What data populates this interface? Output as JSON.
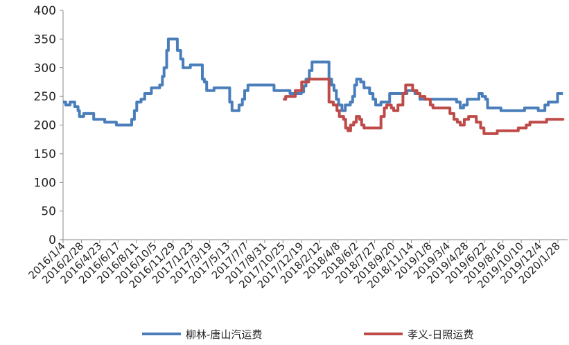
{
  "chart_data": {
    "type": "line",
    "title": "",
    "xlabel": "",
    "ylabel": "",
    "ylim": [
      0,
      400
    ],
    "yticks": [
      0,
      50,
      100,
      150,
      200,
      250,
      300,
      350,
      400
    ],
    "x_tick_labels": [
      "2016/1/4",
      "2016/2/28",
      "2016/4/23",
      "2016/6/17",
      "2016/8/11",
      "2016/10/5",
      "2016/11/29",
      "2017/1/23",
      "2017/3/19",
      "2017/5/13",
      "2017/7/7",
      "2017/8/31",
      "2017/10/25",
      "2017/12/19",
      "2018/2/12",
      "2018/4/8",
      "2018/6/2",
      "2018/7/27",
      "2018/9/20",
      "2018/11/14",
      "2019/1/8",
      "2019/3/4",
      "2019/4/28",
      "2019/6/22",
      "2019/8/16",
      "2019/10/10",
      "2019/12/4",
      "2020/1/28"
    ],
    "grid": false,
    "legend_position": "bottom",
    "series": [
      {
        "name": "柳林-唐山汽运费",
        "color": "#4a7ebb",
        "points": [
          [
            "2016-01-04",
            240
          ],
          [
            "2016-01-12",
            235
          ],
          [
            "2016-01-25",
            240
          ],
          [
            "2016-02-08",
            232
          ],
          [
            "2016-02-18",
            225
          ],
          [
            "2016-02-22",
            215
          ],
          [
            "2016-03-06",
            220
          ],
          [
            "2016-04-05",
            210
          ],
          [
            "2016-05-08",
            205
          ],
          [
            "2016-06-12",
            200
          ],
          [
            "2016-07-20",
            200
          ],
          [
            "2016-07-28",
            210
          ],
          [
            "2016-08-05",
            225
          ],
          [
            "2016-08-12",
            240
          ],
          [
            "2016-08-25",
            245
          ],
          [
            "2016-09-05",
            255
          ],
          [
            "2016-09-25",
            265
          ],
          [
            "2016-10-20",
            270
          ],
          [
            "2016-10-28",
            285
          ],
          [
            "2016-11-02",
            300
          ],
          [
            "2016-11-10",
            330
          ],
          [
            "2016-11-15",
            350
          ],
          [
            "2016-12-05",
            350
          ],
          [
            "2016-12-12",
            330
          ],
          [
            "2016-12-22",
            315
          ],
          [
            "2016-12-29",
            300
          ],
          [
            "2017-01-20",
            305
          ],
          [
            "2017-02-15",
            305
          ],
          [
            "2017-02-25",
            280
          ],
          [
            "2017-03-03",
            275
          ],
          [
            "2017-03-10",
            260
          ],
          [
            "2017-04-01",
            265
          ],
          [
            "2017-05-01",
            265
          ],
          [
            "2017-05-18",
            240
          ],
          [
            "2017-05-25",
            225
          ],
          [
            "2017-06-08",
            225
          ],
          [
            "2017-06-15",
            235
          ],
          [
            "2017-06-25",
            245
          ],
          [
            "2017-07-02",
            260
          ],
          [
            "2017-07-12",
            270
          ],
          [
            "2017-09-20",
            270
          ],
          [
            "2017-09-28",
            260
          ],
          [
            "2017-10-25",
            260
          ],
          [
            "2017-11-08",
            260
          ],
          [
            "2017-11-15",
            255
          ],
          [
            "2017-12-19",
            258
          ],
          [
            "2017-12-26",
            268
          ],
          [
            "2018-01-02",
            280
          ],
          [
            "2018-01-12",
            295
          ],
          [
            "2018-01-20",
            310
          ],
          [
            "2018-03-05",
            310
          ],
          [
            "2018-03-12",
            280
          ],
          [
            "2018-03-20",
            270
          ],
          [
            "2018-03-27",
            260
          ],
          [
            "2018-04-03",
            245
          ],
          [
            "2018-04-10",
            235
          ],
          [
            "2018-04-20",
            225
          ],
          [
            "2018-04-30",
            235
          ],
          [
            "2018-05-15",
            240
          ],
          [
            "2018-05-22",
            250
          ],
          [
            "2018-05-28",
            270
          ],
          [
            "2018-06-03",
            280
          ],
          [
            "2018-06-15",
            275
          ],
          [
            "2018-06-25",
            265
          ],
          [
            "2018-07-12",
            255
          ],
          [
            "2018-07-22",
            245
          ],
          [
            "2018-07-30",
            235
          ],
          [
            "2018-08-15",
            240
          ],
          [
            "2018-09-10",
            255
          ],
          [
            "2018-10-20",
            255
          ],
          [
            "2018-11-01",
            260
          ],
          [
            "2018-11-25",
            255
          ],
          [
            "2018-12-10",
            245
          ],
          [
            "2019-03-20",
            245
          ],
          [
            "2019-03-30",
            240
          ],
          [
            "2019-04-10",
            230
          ],
          [
            "2019-04-20",
            235
          ],
          [
            "2019-05-01",
            245
          ],
          [
            "2019-05-30",
            245
          ],
          [
            "2019-06-05",
            255
          ],
          [
            "2019-06-15",
            250
          ],
          [
            "2019-06-25",
            245
          ],
          [
            "2019-07-01",
            230
          ],
          [
            "2019-08-01",
            230
          ],
          [
            "2019-08-10",
            225
          ],
          [
            "2019-10-10",
            225
          ],
          [
            "2019-10-20",
            230
          ],
          [
            "2019-11-20",
            230
          ],
          [
            "2019-11-30",
            225
          ],
          [
            "2019-12-20",
            235
          ],
          [
            "2019-12-30",
            240
          ],
          [
            "2020-01-20",
            240
          ],
          [
            "2020-01-27",
            255
          ],
          [
            "2020-02-12",
            255
          ]
        ]
      },
      {
        "name": "孝义-日照运费",
        "color": "#be4b48",
        "points": [
          [
            "2017-10-25",
            245
          ],
          [
            "2017-11-02",
            250
          ],
          [
            "2017-11-20",
            250
          ],
          [
            "2017-12-01",
            260
          ],
          [
            "2017-12-20",
            275
          ],
          [
            "2018-01-10",
            280
          ],
          [
            "2018-03-08",
            280
          ],
          [
            "2018-03-12",
            240
          ],
          [
            "2018-03-25",
            235
          ],
          [
            "2018-04-05",
            225
          ],
          [
            "2018-04-12",
            215
          ],
          [
            "2018-04-25",
            210
          ],
          [
            "2018-05-01",
            195
          ],
          [
            "2018-05-08",
            190
          ],
          [
            "2018-05-16",
            200
          ],
          [
            "2018-05-25",
            205
          ],
          [
            "2018-06-02",
            215
          ],
          [
            "2018-06-12",
            210
          ],
          [
            "2018-06-18",
            200
          ],
          [
            "2018-06-25",
            195
          ],
          [
            "2018-08-10",
            195
          ],
          [
            "2018-08-15",
            215
          ],
          [
            "2018-08-25",
            230
          ],
          [
            "2018-09-01",
            235
          ],
          [
            "2018-09-15",
            230
          ],
          [
            "2018-09-22",
            225
          ],
          [
            "2018-10-05",
            235
          ],
          [
            "2018-10-20",
            255
          ],
          [
            "2018-10-28",
            270
          ],
          [
            "2018-11-10",
            270
          ],
          [
            "2018-11-18",
            260
          ],
          [
            "2018-12-01",
            255
          ],
          [
            "2018-12-10",
            250
          ],
          [
            "2018-12-25",
            245
          ],
          [
            "2019-01-10",
            235
          ],
          [
            "2019-01-18",
            230
          ],
          [
            "2019-03-01",
            230
          ],
          [
            "2019-03-10",
            220
          ],
          [
            "2019-03-22",
            210
          ],
          [
            "2019-04-01",
            205
          ],
          [
            "2019-04-10",
            200
          ],
          [
            "2019-04-22",
            210
          ],
          [
            "2019-05-05",
            215
          ],
          [
            "2019-05-18",
            215
          ],
          [
            "2019-05-28",
            205
          ],
          [
            "2019-06-10",
            195
          ],
          [
            "2019-06-20",
            185
          ],
          [
            "2019-07-20",
            185
          ],
          [
            "2019-07-30",
            190
          ],
          [
            "2019-09-20",
            190
          ],
          [
            "2019-10-01",
            195
          ],
          [
            "2019-10-25",
            200
          ],
          [
            "2019-11-05",
            205
          ],
          [
            "2019-12-15",
            205
          ],
          [
            "2019-12-25",
            210
          ],
          [
            "2020-01-20",
            210
          ],
          [
            "2020-02-12",
            212
          ]
        ]
      }
    ]
  }
}
